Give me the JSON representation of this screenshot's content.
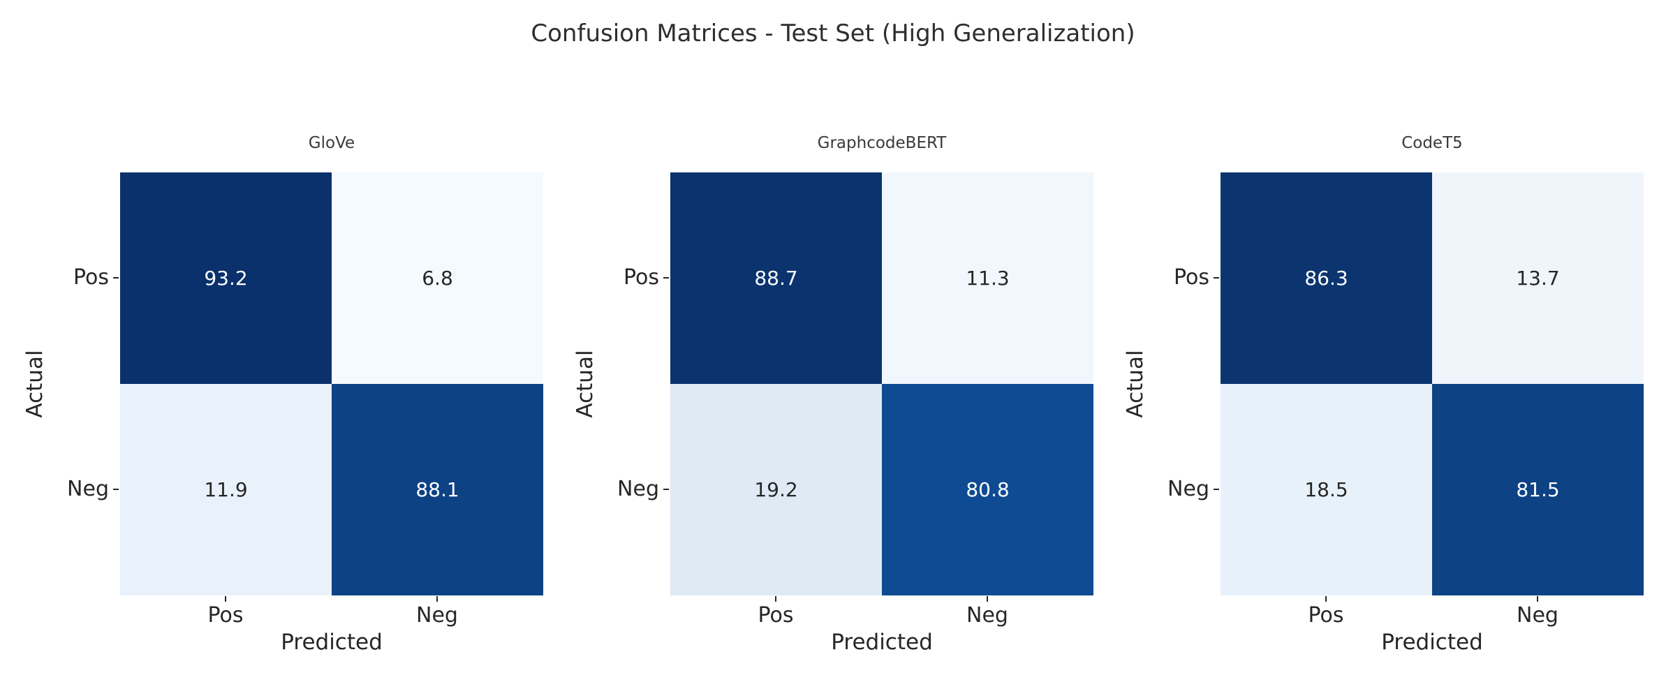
{
  "figure": {
    "title": "Confusion Matrices - Test Set (High Generalization)",
    "background_color": "#ffffff",
    "text_color": "#262626"
  },
  "chart_data": [
    {
      "type": "heatmap",
      "title": "GloVe",
      "xlabel": "Predicted",
      "ylabel": "Actual",
      "x_categories": [
        "Pos",
        "Neg"
      ],
      "y_categories": [
        "Pos",
        "Neg"
      ],
      "values": [
        [
          93.2,
          6.8
        ],
        [
          11.9,
          88.1
        ]
      ],
      "colormap": "Blues",
      "grid": false,
      "cells": [
        {
          "label": "93.2",
          "bg": "#0a316b",
          "fg": "#ffffff"
        },
        {
          "label": "6.8",
          "bg": "#f5fafe",
          "fg": "#262626"
        },
        {
          "label": "11.9",
          "bg": "#e9f2fa",
          "fg": "#262626"
        },
        {
          "label": "88.1",
          "bg": "#0d4284",
          "fg": "#ffffff"
        }
      ]
    },
    {
      "type": "heatmap",
      "title": "GraphcodeBERT",
      "xlabel": "Predicted",
      "ylabel": "Actual",
      "x_categories": [
        "Pos",
        "Neg"
      ],
      "y_categories": [
        "Pos",
        "Neg"
      ],
      "values": [
        [
          88.7,
          11.3
        ],
        [
          19.2,
          80.8
        ]
      ],
      "colormap": "Blues",
      "grid": false,
      "cells": [
        {
          "label": "88.7",
          "bg": "#0b336e",
          "fg": "#ffffff"
        },
        {
          "label": "11.3",
          "bg": "#f1f7fc",
          "fg": "#262626"
        },
        {
          "label": "19.2",
          "bg": "#dfeaf5",
          "fg": "#262626"
        },
        {
          "label": "80.8",
          "bg": "#0f4b93",
          "fg": "#ffffff"
        }
      ]
    },
    {
      "type": "heatmap",
      "title": "CodeT5",
      "xlabel": "Predicted",
      "ylabel": "Actual",
      "x_categories": [
        "Pos",
        "Neg"
      ],
      "y_categories": [
        "Pos",
        "Neg"
      ],
      "values": [
        [
          86.3,
          13.7
        ],
        [
          18.5,
          81.5
        ]
      ],
      "colormap": "Blues",
      "grid": false,
      "cells": [
        {
          "label": "86.3",
          "bg": "#0c356f",
          "fg": "#ffffff"
        },
        {
          "label": "13.7",
          "bg": "#eff5fb",
          "fg": "#262626"
        },
        {
          "label": "18.5",
          "bg": "#e7f1fa",
          "fg": "#262626"
        },
        {
          "label": "81.5",
          "bg": "#0d4284",
          "fg": "#ffffff"
        }
      ]
    }
  ]
}
